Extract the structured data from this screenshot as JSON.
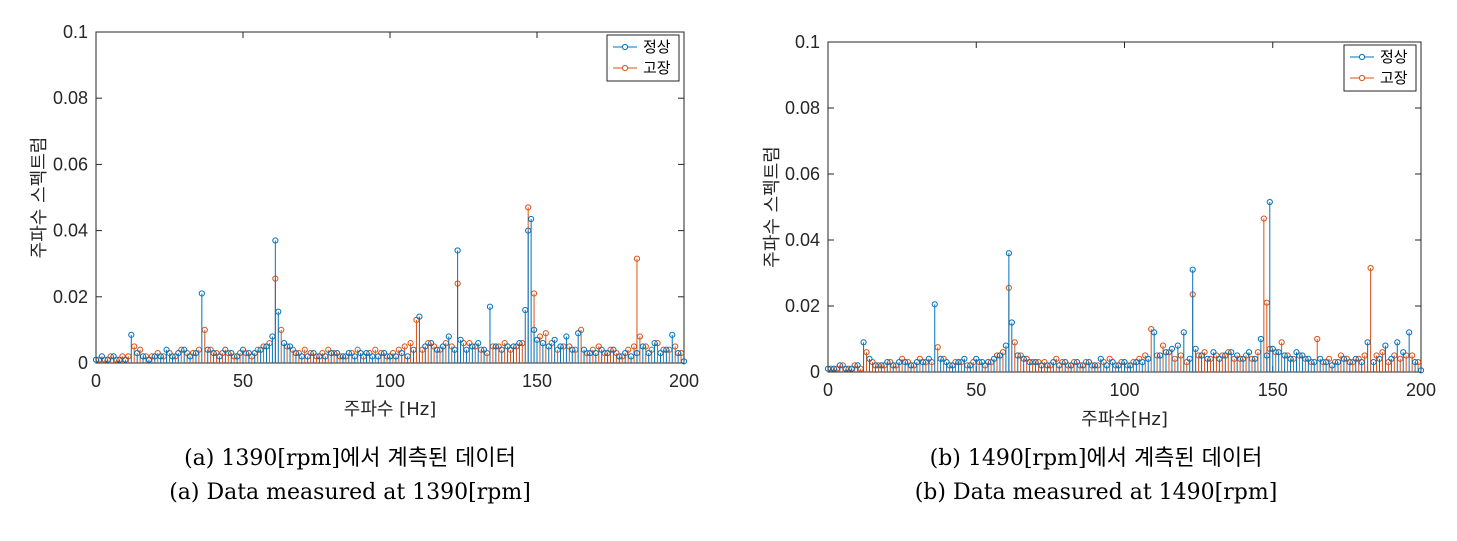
{
  "chart_data": [
    {
      "type": "stem",
      "xlabel": "주파수 [Hz]",
      "ylabel": "주파수 스펙트럼",
      "xlim": [
        0,
        200
      ],
      "ylim": [
        0,
        0.1
      ],
      "xticks": [
        "0",
        "50",
        "100",
        "150",
        "200"
      ],
      "yticks": [
        "0",
        "0.02",
        "0.04",
        "0.06",
        "0.08",
        "0.1"
      ],
      "legend_position": "top-right",
      "series": [
        {
          "name": "정상",
          "color": "#0072BD",
          "x": [
            0,
            2,
            4,
            6,
            8,
            10,
            12,
            14,
            16,
            18,
            20,
            22,
            24,
            26,
            28,
            30,
            32,
            34,
            36,
            38,
            40,
            42,
            44,
            46,
            48,
            50,
            52,
            54,
            56,
            58,
            60,
            61,
            62,
            64,
            66,
            68,
            70,
            72,
            74,
            76,
            78,
            80,
            82,
            84,
            86,
            88,
            90,
            92,
            94,
            96,
            98,
            100,
            102,
            104,
            106,
            108,
            110,
            112,
            114,
            116,
            118,
            120,
            122,
            123,
            124,
            126,
            128,
            130,
            132,
            134,
            136,
            138,
            140,
            142,
            144,
            146,
            147,
            148,
            149,
            150,
            152,
            154,
            156,
            158,
            160,
            162,
            164,
            166,
            168,
            170,
            172,
            174,
            176,
            178,
            180,
            182,
            184,
            186,
            188,
            190,
            192,
            194,
            196,
            198,
            200
          ],
          "y": [
            0.001,
            0.002,
            0.001,
            0.002,
            0.001,
            0.001,
            0.0085,
            0.003,
            0.002,
            0.001,
            0.002,
            0.002,
            0.004,
            0.002,
            0.003,
            0.004,
            0.002,
            0.003,
            0.021,
            0.004,
            0.003,
            0.002,
            0.004,
            0.003,
            0.002,
            0.004,
            0.003,
            0.003,
            0.004,
            0.005,
            0.008,
            0.037,
            0.0155,
            0.006,
            0.005,
            0.003,
            0.002,
            0.002,
            0.003,
            0.002,
            0.002,
            0.003,
            0.003,
            0.002,
            0.003,
            0.002,
            0.003,
            0.003,
            0.002,
            0.002,
            0.003,
            0.002,
            0.002,
            0.003,
            0.002,
            0.004,
            0.014,
            0.005,
            0.006,
            0.004,
            0.005,
            0.008,
            0.004,
            0.034,
            0.007,
            0.004,
            0.005,
            0.006,
            0.004,
            0.017,
            0.005,
            0.004,
            0.005,
            0.005,
            0.006,
            0.016,
            0.04,
            0.0435,
            0.01,
            0.007,
            0.006,
            0.005,
            0.007,
            0.005,
            0.008,
            0.004,
            0.009,
            0.004,
            0.003,
            0.003,
            0.004,
            0.003,
            0.004,
            0.002,
            0.003,
            0.002,
            0.003,
            0.005,
            0.003,
            0.006,
            0.003,
            0.004,
            0.0085,
            0.003,
            0.0005
          ]
        },
        {
          "name": "고장",
          "color": "#D95319",
          "x": [
            1,
            3,
            5,
            7,
            9,
            11,
            13,
            15,
            17,
            19,
            21,
            23,
            25,
            27,
            29,
            31,
            33,
            35,
            37,
            39,
            41,
            43,
            45,
            47,
            49,
            51,
            53,
            55,
            57,
            59,
            61,
            63,
            65,
            67,
            69,
            71,
            73,
            75,
            77,
            79,
            81,
            83,
            85,
            87,
            89,
            91,
            93,
            95,
            97,
            99,
            101,
            103,
            105,
            107,
            109,
            111,
            113,
            115,
            117,
            119,
            121,
            123,
            125,
            127,
            129,
            131,
            133,
            135,
            137,
            139,
            141,
            143,
            145,
            147,
            149,
            151,
            153,
            155,
            157,
            159,
            161,
            163,
            165,
            167,
            169,
            171,
            173,
            175,
            177,
            179,
            181,
            183,
            184,
            185,
            187,
            189,
            191,
            193,
            195,
            197,
            199
          ],
          "y": [
            0.001,
            0.001,
            0.002,
            0.001,
            0.002,
            0.002,
            0.005,
            0.004,
            0.002,
            0.002,
            0.003,
            0.002,
            0.003,
            0.002,
            0.004,
            0.003,
            0.003,
            0.004,
            0.01,
            0.004,
            0.003,
            0.003,
            0.003,
            0.002,
            0.003,
            0.003,
            0.002,
            0.004,
            0.005,
            0.006,
            0.0255,
            0.01,
            0.005,
            0.004,
            0.003,
            0.004,
            0.003,
            0.002,
            0.003,
            0.004,
            0.003,
            0.002,
            0.002,
            0.003,
            0.004,
            0.002,
            0.003,
            0.004,
            0.003,
            0.002,
            0.003,
            0.004,
            0.005,
            0.006,
            0.013,
            0.004,
            0.006,
            0.005,
            0.004,
            0.006,
            0.005,
            0.024,
            0.006,
            0.006,
            0.005,
            0.004,
            0.003,
            0.005,
            0.005,
            0.006,
            0.004,
            0.005,
            0.006,
            0.047,
            0.021,
            0.008,
            0.009,
            0.006,
            0.004,
            0.005,
            0.005,
            0.004,
            0.01,
            0.003,
            0.004,
            0.005,
            0.003,
            0.004,
            0.003,
            0.002,
            0.004,
            0.005,
            0.0315,
            0.008,
            0.005,
            0.004,
            0.006,
            0.004,
            0.004,
            0.005,
            0.003
          ]
        }
      ]
    },
    {
      "type": "stem",
      "xlabel": "주파수[Hz]",
      "ylabel": "주파수 스펙트럼",
      "xlim": [
        0,
        200
      ],
      "ylim": [
        0,
        0.1
      ],
      "xticks": [
        "0",
        "50",
        "100",
        "150",
        "200"
      ],
      "yticks": [
        "0",
        "0.02",
        "0.04",
        "0.06",
        "0.08",
        "0.1"
      ],
      "legend_position": "top-right",
      "series": [
        {
          "name": "정상",
          "color": "#0072BD",
          "x": [
            0,
            2,
            4,
            6,
            8,
            10,
            12,
            14,
            16,
            18,
            20,
            22,
            24,
            26,
            28,
            30,
            32,
            34,
            36,
            38,
            40,
            42,
            44,
            46,
            48,
            50,
            52,
            54,
            56,
            58,
            60,
            61,
            62,
            64,
            66,
            68,
            70,
            72,
            74,
            76,
            78,
            80,
            82,
            84,
            86,
            88,
            90,
            92,
            94,
            96,
            98,
            100,
            102,
            104,
            106,
            108,
            110,
            112,
            114,
            116,
            118,
            120,
            122,
            123,
            124,
            126,
            128,
            130,
            132,
            134,
            136,
            138,
            140,
            142,
            144,
            146,
            148,
            149,
            150,
            152,
            154,
            156,
            158,
            160,
            162,
            164,
            166,
            168,
            170,
            172,
            174,
            176,
            178,
            180,
            182,
            184,
            186,
            188,
            190,
            192,
            194,
            196,
            198,
            200
          ],
          "y": [
            0.001,
            0.001,
            0.002,
            0.001,
            0.001,
            0.002,
            0.009,
            0.004,
            0.002,
            0.002,
            0.003,
            0.002,
            0.003,
            0.003,
            0.002,
            0.003,
            0.003,
            0.004,
            0.0205,
            0.004,
            0.003,
            0.002,
            0.003,
            0.004,
            0.002,
            0.004,
            0.003,
            0.003,
            0.004,
            0.005,
            0.008,
            0.036,
            0.015,
            0.005,
            0.004,
            0.003,
            0.003,
            0.002,
            0.002,
            0.003,
            0.002,
            0.003,
            0.002,
            0.003,
            0.002,
            0.003,
            0.002,
            0.004,
            0.002,
            0.003,
            0.002,
            0.003,
            0.002,
            0.003,
            0.003,
            0.004,
            0.012,
            0.005,
            0.006,
            0.007,
            0.008,
            0.012,
            0.004,
            0.031,
            0.007,
            0.005,
            0.004,
            0.006,
            0.004,
            0.005,
            0.006,
            0.005,
            0.004,
            0.006,
            0.004,
            0.01,
            0.005,
            0.0515,
            0.007,
            0.006,
            0.005,
            0.004,
            0.006,
            0.005,
            0.004,
            0.003,
            0.004,
            0.003,
            0.002,
            0.003,
            0.004,
            0.003,
            0.004,
            0.003,
            0.009,
            0.003,
            0.004,
            0.008,
            0.004,
            0.009,
            0.006,
            0.012,
            0.003,
            0.0005
          ]
        },
        {
          "name": "고장",
          "color": "#D95319",
          "x": [
            1,
            3,
            5,
            7,
            9,
            11,
            13,
            15,
            17,
            19,
            21,
            23,
            25,
            27,
            29,
            31,
            33,
            35,
            37,
            39,
            41,
            43,
            45,
            47,
            49,
            51,
            53,
            55,
            57,
            59,
            61,
            63,
            65,
            67,
            69,
            71,
            73,
            75,
            77,
            79,
            81,
            83,
            85,
            87,
            89,
            91,
            93,
            95,
            97,
            99,
            101,
            103,
            105,
            107,
            109,
            111,
            113,
            115,
            117,
            119,
            121,
            123,
            125,
            127,
            129,
            131,
            133,
            135,
            137,
            139,
            141,
            143,
            145,
            147,
            148,
            149,
            151,
            153,
            155,
            157,
            159,
            161,
            163,
            165,
            167,
            169,
            171,
            173,
            175,
            177,
            179,
            181,
            183,
            185,
            187,
            189,
            191,
            193,
            195,
            197,
            199
          ],
          "y": [
            0.001,
            0.001,
            0.002,
            0.001,
            0.002,
            0.001,
            0.006,
            0.003,
            0.002,
            0.002,
            0.003,
            0.002,
            0.004,
            0.003,
            0.002,
            0.004,
            0.003,
            0.003,
            0.0075,
            0.004,
            0.002,
            0.003,
            0.003,
            0.002,
            0.003,
            0.003,
            0.002,
            0.003,
            0.005,
            0.006,
            0.0255,
            0.009,
            0.005,
            0.004,
            0.003,
            0.003,
            0.003,
            0.002,
            0.004,
            0.003,
            0.002,
            0.003,
            0.002,
            0.003,
            0.002,
            0.002,
            0.003,
            0.004,
            0.002,
            0.003,
            0.002,
            0.003,
            0.004,
            0.005,
            0.013,
            0.005,
            0.008,
            0.006,
            0.004,
            0.005,
            0.003,
            0.0235,
            0.005,
            0.006,
            0.004,
            0.005,
            0.005,
            0.006,
            0.004,
            0.004,
            0.005,
            0.004,
            0.006,
            0.0465,
            0.021,
            0.007,
            0.006,
            0.009,
            0.005,
            0.004,
            0.005,
            0.004,
            0.003,
            0.01,
            0.003,
            0.004,
            0.003,
            0.005,
            0.004,
            0.003,
            0.004,
            0.005,
            0.0315,
            0.005,
            0.006,
            0.003,
            0.005,
            0.004,
            0.005,
            0.005,
            0.003
          ]
        }
      ]
    }
  ],
  "captions": [
    {
      "line1": "(a) 1390[rpm]에서 계측된 데이터",
      "line2": "(a) Data measured at 1390[rpm]"
    },
    {
      "line1": "(b) 1490[rpm]에서 계측된 데이터",
      "line2": "(b) Data measured at 1490[rpm]"
    }
  ]
}
